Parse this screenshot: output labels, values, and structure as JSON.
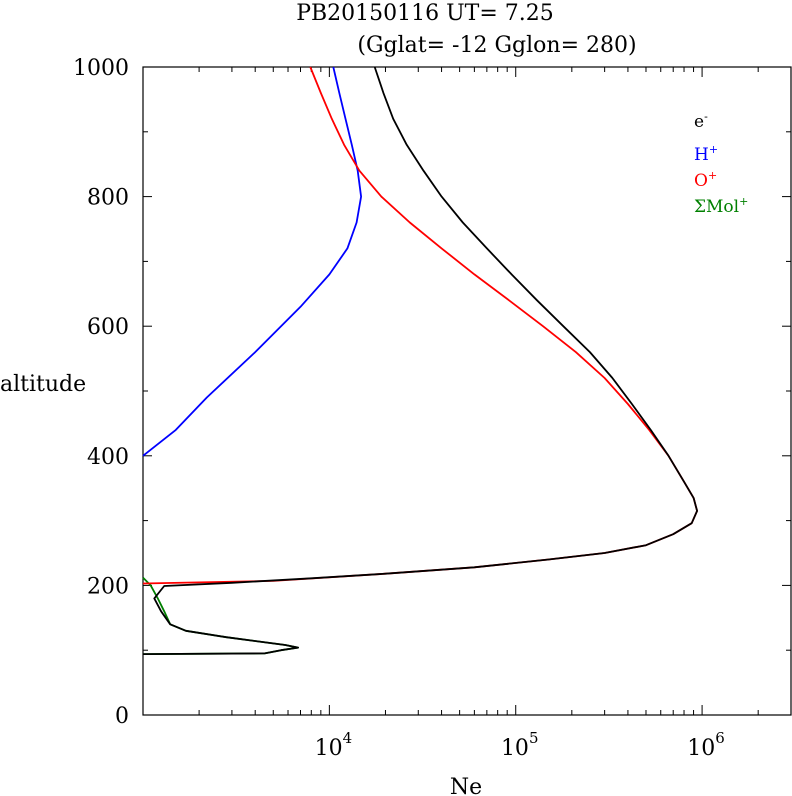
{
  "chart_data": {
    "type": "line",
    "title_line1": "PB20150116   UT=  7.25",
    "title_line2": "(Gglat= -12   Gglon=  280)",
    "xlabel": "Ne",
    "ylabel": "altitude",
    "xscale": "log",
    "xlim": [
      1000,
      3000000
    ],
    "ylim": [
      0,
      1000
    ],
    "y_ticks": [
      0,
      200,
      400,
      600,
      800,
      1000
    ],
    "y_tick_labels": [
      "0",
      "200",
      "400",
      "600",
      "800",
      "1000"
    ],
    "x_major_ticks": [
      10000,
      100000,
      1000000
    ],
    "x_tick_labels": [
      {
        "base": "10",
        "exp": "4"
      },
      {
        "base": "10",
        "exp": "5"
      },
      {
        "base": "10",
        "exp": "6"
      }
    ],
    "legend_position": "top-right",
    "series": [
      {
        "name": "e-",
        "legend_base": "e",
        "legend_sup": "-",
        "color": "#000000",
        "points": [
          [
            1000,
            94
          ],
          [
            4500,
            95
          ],
          [
            5500,
            100
          ],
          [
            6800,
            104
          ],
          [
            5800,
            108
          ],
          [
            2800,
            120
          ],
          [
            1700,
            130
          ],
          [
            1400,
            140
          ],
          [
            1250,
            160
          ],
          [
            1150,
            180
          ],
          [
            1300,
            199
          ],
          [
            3000,
            204
          ],
          [
            8000,
            211
          ],
          [
            20000,
            218
          ],
          [
            60000,
            228
          ],
          [
            150000,
            240
          ],
          [
            300000,
            250
          ],
          [
            500000,
            262
          ],
          [
            700000,
            279
          ],
          [
            880000,
            296
          ],
          [
            940000,
            315
          ],
          [
            900000,
            335
          ],
          [
            800000,
            360
          ],
          [
            660000,
            400
          ],
          [
            530000,
            440
          ],
          [
            420000,
            480
          ],
          [
            330000,
            520
          ],
          [
            250000,
            560
          ],
          [
            180000,
            600
          ],
          [
            130000,
            640
          ],
          [
            95000,
            680
          ],
          [
            70000,
            720
          ],
          [
            52000,
            760
          ],
          [
            40000,
            800
          ],
          [
            32000,
            840
          ],
          [
            26000,
            880
          ],
          [
            22000,
            920
          ],
          [
            19500,
            960
          ],
          [
            17500,
            1000
          ]
        ]
      },
      {
        "name": "H+",
        "legend_base": "H",
        "legend_sup": "+",
        "color": "#0000ff",
        "points": [
          [
            1000,
            400
          ],
          [
            1500,
            440
          ],
          [
            2200,
            490
          ],
          [
            4000,
            560
          ],
          [
            7000,
            630
          ],
          [
            10000,
            680
          ],
          [
            12500,
            720
          ],
          [
            14000,
            760
          ],
          [
            14800,
            800
          ],
          [
            14200,
            840
          ],
          [
            13200,
            880
          ],
          [
            12200,
            920
          ],
          [
            11300,
            960
          ],
          [
            10500,
            1000
          ]
        ]
      },
      {
        "name": "O+",
        "legend_base": "O",
        "legend_sup": "+",
        "color": "#ff0000",
        "points": [
          [
            1000,
            203
          ],
          [
            5000,
            207
          ],
          [
            20000,
            218
          ],
          [
            60000,
            228
          ],
          [
            150000,
            240
          ],
          [
            300000,
            250
          ],
          [
            500000,
            262
          ],
          [
            700000,
            279
          ],
          [
            880000,
            296
          ],
          [
            940000,
            315
          ],
          [
            900000,
            335
          ],
          [
            800000,
            360
          ],
          [
            660000,
            400
          ],
          [
            520000,
            440
          ],
          [
            400000,
            480
          ],
          [
            300000,
            520
          ],
          [
            210000,
            560
          ],
          [
            140000,
            600
          ],
          [
            92000,
            640
          ],
          [
            60000,
            680
          ],
          [
            40000,
            720
          ],
          [
            27000,
            760
          ],
          [
            19000,
            800
          ],
          [
            14500,
            840
          ],
          [
            12000,
            880
          ],
          [
            10300,
            920
          ],
          [
            9000,
            960
          ],
          [
            7900,
            1000
          ]
        ]
      },
      {
        "name": "ΣMol+",
        "legend_base": "ΣMol",
        "legend_sup": "+",
        "color": "#008000",
        "points": [
          [
            1000,
            94
          ],
          [
            4500,
            95
          ],
          [
            5500,
            100
          ],
          [
            6800,
            104
          ],
          [
            5800,
            108
          ],
          [
            2800,
            120
          ],
          [
            1700,
            130
          ],
          [
            1400,
            140
          ],
          [
            1300,
            160
          ],
          [
            1200,
            180
          ],
          [
            1100,
            200
          ],
          [
            1000,
            212
          ]
        ]
      }
    ]
  }
}
